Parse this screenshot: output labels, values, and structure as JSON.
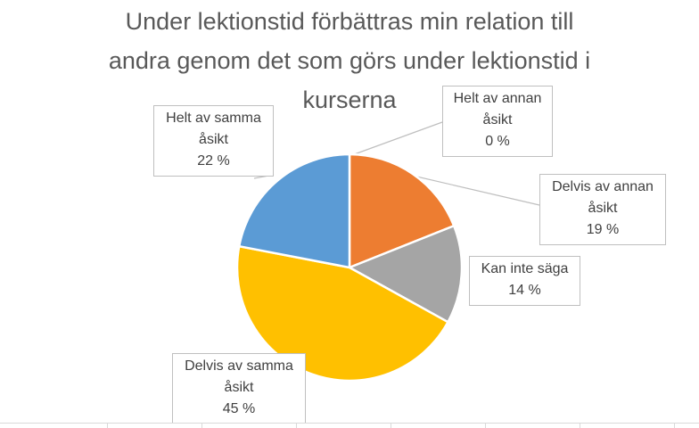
{
  "chart_data": {
    "type": "pie",
    "title_lines": [
      "Under lektionstid förbättras min relation till",
      "andra genom det som görs under lektionstid i",
      "kurserna"
    ],
    "slices": [
      {
        "label_lines": [
          "Helt av annan",
          "åsikt"
        ],
        "percent_label": "0 %",
        "value": 0,
        "color": "#ed7d31"
      },
      {
        "label_lines": [
          "Delvis av annan",
          "åsikt"
        ],
        "percent_label": "19 %",
        "value": 19,
        "color": "#ed7d31"
      },
      {
        "label_lines": [
          "Kan inte säga"
        ],
        "percent_label": "14 %",
        "value": 14,
        "color": "#a5a5a5"
      },
      {
        "label_lines": [
          "Delvis av samma",
          "åsikt"
        ],
        "percent_label": "45 %",
        "value": 45,
        "color": "#ffc000"
      },
      {
        "label_lines": [
          "Helt av samma",
          "åsikt"
        ],
        "percent_label": "22 %",
        "value": 22,
        "color": "#5b9bd5"
      }
    ]
  }
}
